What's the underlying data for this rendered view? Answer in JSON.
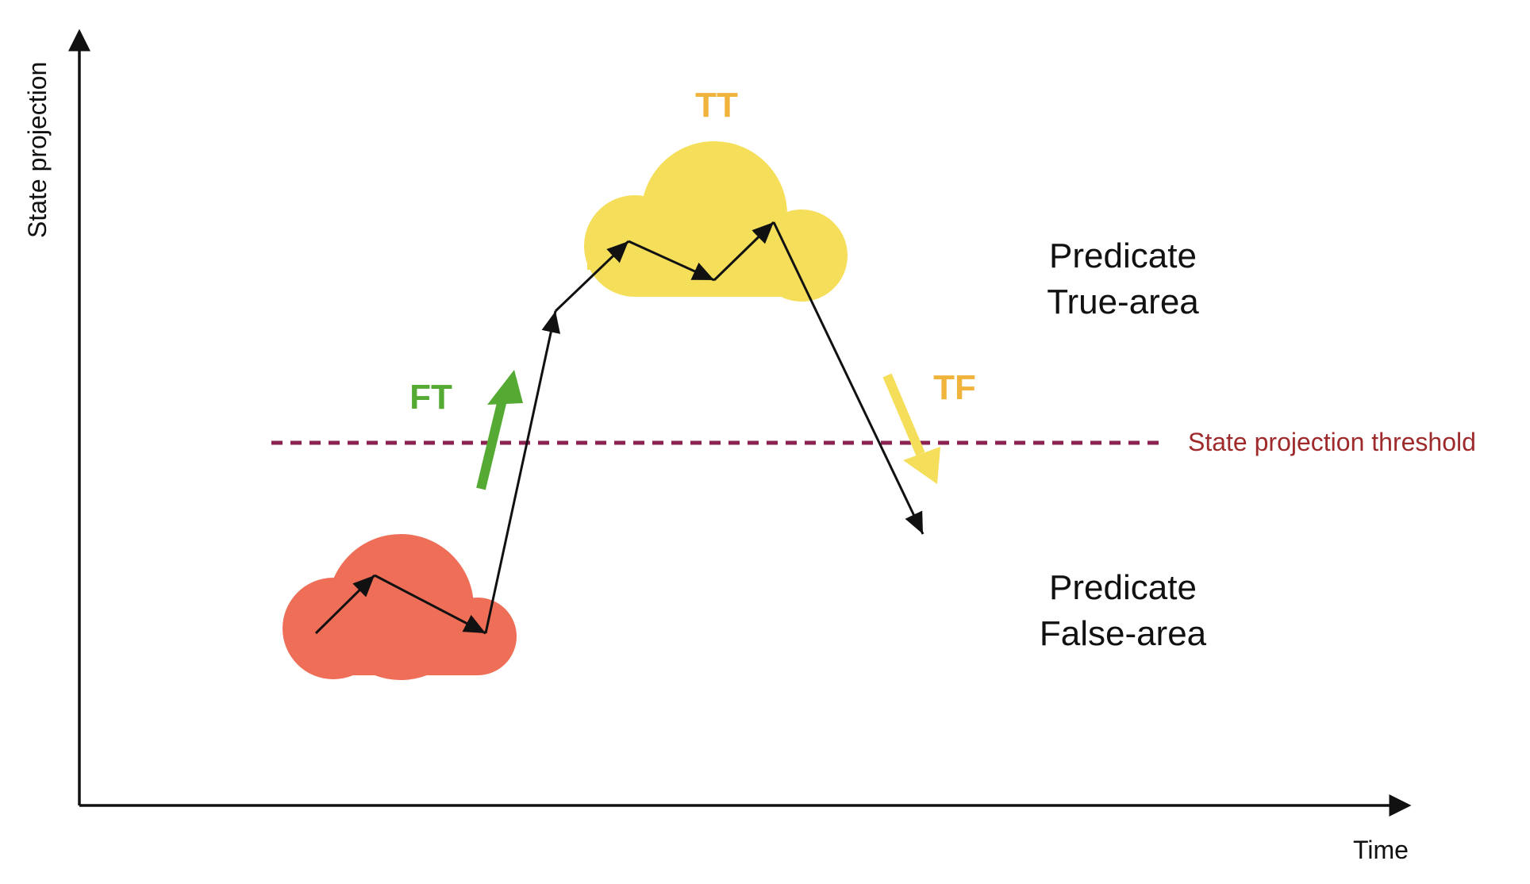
{
  "axes": {
    "y_label": "State projection",
    "x_label": "Time"
  },
  "threshold": {
    "label": "State projection threshold",
    "color": "#9e2a2b",
    "line_color": "#8b2252"
  },
  "regions": {
    "true_area": {
      "line1": "Predicate",
      "line2": "True-area"
    },
    "false_area": {
      "line1": "Predicate",
      "line2": "False-area"
    }
  },
  "tags": {
    "tt": {
      "text": "TT",
      "color": "#f0b43c"
    },
    "ft": {
      "text": "FT",
      "color": "#55aa33"
    },
    "tf": {
      "text": "TF",
      "color": "#f0b43c"
    }
  },
  "clouds": {
    "true_cloud_color": "#f5df5a",
    "false_cloud_color": "#ee6e58"
  },
  "arrows": {
    "ft_color": "#55aa33",
    "tf_color": "#f5df5a"
  }
}
